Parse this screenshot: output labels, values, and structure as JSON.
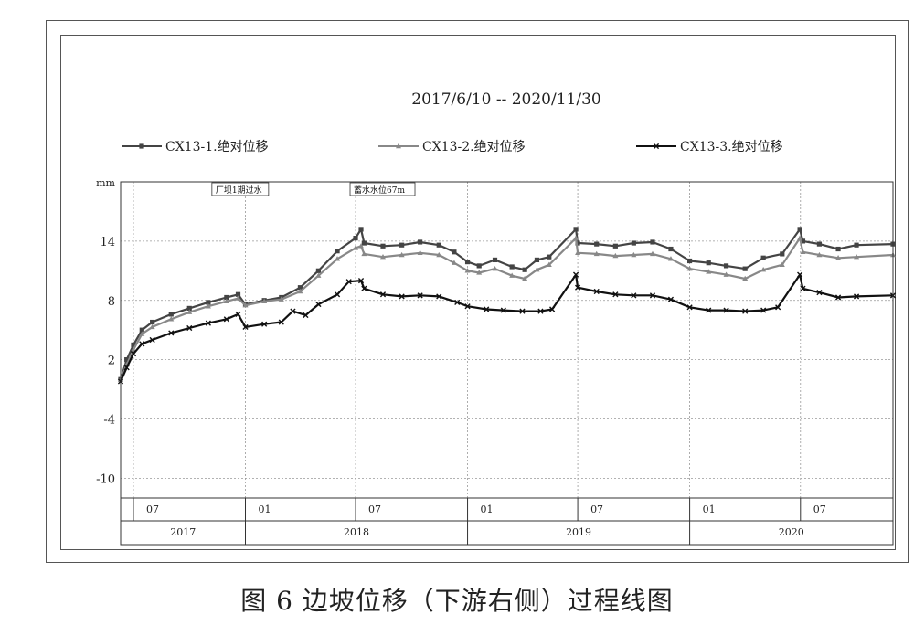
{
  "chart_data": {
    "type": "line",
    "title": "2017/6/10 -- 2020/11/30",
    "ylabel": "mm",
    "ylim": [
      -12,
      20
    ],
    "yticks": [
      "14",
      "8",
      "2",
      "-4",
      "-10"
    ],
    "xlim": [
      "2017-06-10",
      "2020-11-30"
    ],
    "month_ticks": [
      {
        "date": "2017-07-01",
        "label": "07"
      },
      {
        "date": "2018-01-01",
        "label": "01"
      },
      {
        "date": "2018-07-01",
        "label": "07"
      },
      {
        "date": "2019-01-01",
        "label": "01"
      },
      {
        "date": "2019-07-01",
        "label": "07"
      },
      {
        "date": "2020-01-01",
        "label": "01"
      },
      {
        "date": "2020-07-01",
        "label": "07"
      }
    ],
    "year_labels": [
      {
        "label": "2017",
        "from": "2017-06-10",
        "to": "2018-01-01"
      },
      {
        "label": "2018",
        "from": "2018-01-01",
        "to": "2019-01-01"
      },
      {
        "label": "2019",
        "from": "2019-01-01",
        "to": "2020-01-01"
      },
      {
        "label": "2020",
        "from": "2020-01-01",
        "to": "2020-11-30"
      }
    ],
    "annotations": [
      {
        "text": "厂坝1期过水",
        "date": "2017-12-10"
      },
      {
        "text": "蓄水水位67m",
        "date": "2018-07-25"
      }
    ],
    "grid": true,
    "legend_position": "top",
    "series": [
      {
        "name": "CX13-1.绝对位移",
        "color": "#444444",
        "marker": "square",
        "points": [
          [
            "2017-06-10",
            0.0
          ],
          [
            "2017-06-20",
            2.0
          ],
          [
            "2017-07-01",
            3.5
          ],
          [
            "2017-07-15",
            5.0
          ],
          [
            "2017-08-01",
            5.8
          ],
          [
            "2017-09-01",
            6.6
          ],
          [
            "2017-10-01",
            7.2
          ],
          [
            "2017-11-01",
            7.8
          ],
          [
            "2017-12-01",
            8.3
          ],
          [
            "2017-12-20",
            8.6
          ],
          [
            "2018-01-01",
            7.6
          ],
          [
            "2018-02-01",
            8.0
          ],
          [
            "2018-03-01",
            8.3
          ],
          [
            "2018-04-01",
            9.3
          ],
          [
            "2018-05-01",
            11.0
          ],
          [
            "2018-06-01",
            13.0
          ],
          [
            "2018-07-01",
            14.3
          ],
          [
            "2018-07-10",
            15.2
          ],
          [
            "2018-07-15",
            13.8
          ],
          [
            "2018-08-15",
            13.5
          ],
          [
            "2018-09-15",
            13.6
          ],
          [
            "2018-10-15",
            13.9
          ],
          [
            "2018-11-15",
            13.6
          ],
          [
            "2018-12-10",
            12.9
          ],
          [
            "2019-01-01",
            11.9
          ],
          [
            "2019-01-20",
            11.5
          ],
          [
            "2019-02-15",
            12.1
          ],
          [
            "2019-03-15",
            11.4
          ],
          [
            "2019-04-05",
            11.1
          ],
          [
            "2019-04-25",
            12.1
          ],
          [
            "2019-05-15",
            12.4
          ],
          [
            "2019-06-28",
            15.2
          ],
          [
            "2019-07-01",
            13.8
          ],
          [
            "2019-08-01",
            13.7
          ],
          [
            "2019-09-01",
            13.5
          ],
          [
            "2019-10-01",
            13.8
          ],
          [
            "2019-11-01",
            13.9
          ],
          [
            "2019-12-01",
            13.2
          ],
          [
            "2020-01-01",
            12.0
          ],
          [
            "2020-02-01",
            11.8
          ],
          [
            "2020-03-01",
            11.5
          ],
          [
            "2020-04-01",
            11.2
          ],
          [
            "2020-05-01",
            12.3
          ],
          [
            "2020-06-01",
            12.7
          ],
          [
            "2020-06-30",
            15.2
          ],
          [
            "2020-07-05",
            14.0
          ],
          [
            "2020-08-01",
            13.7
          ],
          [
            "2020-09-01",
            13.2
          ],
          [
            "2020-10-01",
            13.6
          ],
          [
            "2020-11-30",
            13.7
          ]
        ]
      },
      {
        "name": "CX13-2.绝对位移",
        "color": "#888888",
        "marker": "triangle",
        "points": [
          [
            "2017-06-10",
            0.0
          ],
          [
            "2017-06-20",
            1.5
          ],
          [
            "2017-07-01",
            3.0
          ],
          [
            "2017-07-15",
            4.6
          ],
          [
            "2017-08-01",
            5.3
          ],
          [
            "2017-09-01",
            6.1
          ],
          [
            "2017-10-01",
            6.8
          ],
          [
            "2017-11-01",
            7.4
          ],
          [
            "2017-12-01",
            7.9
          ],
          [
            "2017-12-20",
            8.2
          ],
          [
            "2018-01-01",
            7.5
          ],
          [
            "2018-02-01",
            7.9
          ],
          [
            "2018-03-01",
            8.1
          ],
          [
            "2018-04-01",
            8.9
          ],
          [
            "2018-05-01",
            10.5
          ],
          [
            "2018-06-01",
            12.2
          ],
          [
            "2018-07-01",
            13.3
          ],
          [
            "2018-07-10",
            13.5
          ],
          [
            "2018-07-15",
            12.7
          ],
          [
            "2018-08-15",
            12.4
          ],
          [
            "2018-09-15",
            12.6
          ],
          [
            "2018-10-15",
            12.8
          ],
          [
            "2018-11-15",
            12.6
          ],
          [
            "2018-12-10",
            11.8
          ],
          [
            "2019-01-01",
            11.0
          ],
          [
            "2019-01-20",
            10.8
          ],
          [
            "2019-02-15",
            11.2
          ],
          [
            "2019-03-15",
            10.5
          ],
          [
            "2019-04-05",
            10.2
          ],
          [
            "2019-04-25",
            11.1
          ],
          [
            "2019-05-15",
            11.6
          ],
          [
            "2019-06-28",
            14.3
          ],
          [
            "2019-07-01",
            12.8
          ],
          [
            "2019-08-01",
            12.7
          ],
          [
            "2019-09-01",
            12.5
          ],
          [
            "2019-10-01",
            12.6
          ],
          [
            "2019-11-01",
            12.7
          ],
          [
            "2019-12-01",
            12.2
          ],
          [
            "2020-01-01",
            11.2
          ],
          [
            "2020-02-01",
            10.9
          ],
          [
            "2020-03-01",
            10.6
          ],
          [
            "2020-04-01",
            10.2
          ],
          [
            "2020-05-01",
            11.1
          ],
          [
            "2020-06-01",
            11.6
          ],
          [
            "2020-06-30",
            14.3
          ],
          [
            "2020-07-05",
            12.9
          ],
          [
            "2020-08-01",
            12.6
          ],
          [
            "2020-09-01",
            12.3
          ],
          [
            "2020-10-01",
            12.4
          ],
          [
            "2020-11-30",
            12.6
          ]
        ]
      },
      {
        "name": "CX13-3.绝对位移",
        "color": "#111111",
        "marker": "cross",
        "points": [
          [
            "2017-06-10",
            -0.2
          ],
          [
            "2017-06-20",
            1.2
          ],
          [
            "2017-07-01",
            2.6
          ],
          [
            "2017-07-15",
            3.6
          ],
          [
            "2017-08-01",
            4.0
          ],
          [
            "2017-09-01",
            4.7
          ],
          [
            "2017-10-01",
            5.2
          ],
          [
            "2017-11-01",
            5.7
          ],
          [
            "2017-12-01",
            6.1
          ],
          [
            "2017-12-20",
            6.6
          ],
          [
            "2018-01-01",
            5.3
          ],
          [
            "2018-02-01",
            5.6
          ],
          [
            "2018-03-01",
            5.8
          ],
          [
            "2018-03-20",
            6.9
          ],
          [
            "2018-04-10",
            6.5
          ],
          [
            "2018-05-01",
            7.6
          ],
          [
            "2018-06-01",
            8.6
          ],
          [
            "2018-06-20",
            9.9
          ],
          [
            "2018-07-10",
            10.0
          ],
          [
            "2018-07-15",
            9.2
          ],
          [
            "2018-08-15",
            8.6
          ],
          [
            "2018-09-15",
            8.4
          ],
          [
            "2018-10-15",
            8.5
          ],
          [
            "2018-11-15",
            8.4
          ],
          [
            "2018-12-15",
            7.8
          ],
          [
            "2019-01-01",
            7.4
          ],
          [
            "2019-02-01",
            7.1
          ],
          [
            "2019-03-01",
            7.0
          ],
          [
            "2019-04-01",
            6.9
          ],
          [
            "2019-05-01",
            6.9
          ],
          [
            "2019-05-20",
            7.1
          ],
          [
            "2019-06-28",
            10.6
          ],
          [
            "2019-07-01",
            9.3
          ],
          [
            "2019-08-01",
            8.9
          ],
          [
            "2019-09-01",
            8.6
          ],
          [
            "2019-10-01",
            8.5
          ],
          [
            "2019-11-01",
            8.5
          ],
          [
            "2019-12-01",
            8.1
          ],
          [
            "2020-01-01",
            7.3
          ],
          [
            "2020-02-01",
            7.0
          ],
          [
            "2020-03-01",
            7.0
          ],
          [
            "2020-04-01",
            6.9
          ],
          [
            "2020-05-01",
            7.0
          ],
          [
            "2020-05-25",
            7.3
          ],
          [
            "2020-06-30",
            10.6
          ],
          [
            "2020-07-05",
            9.2
          ],
          [
            "2020-08-01",
            8.8
          ],
          [
            "2020-09-01",
            8.3
          ],
          [
            "2020-10-01",
            8.4
          ],
          [
            "2020-11-30",
            8.5
          ]
        ]
      }
    ]
  },
  "caption": "图 6  边坡位移（下游右侧）过程线图"
}
